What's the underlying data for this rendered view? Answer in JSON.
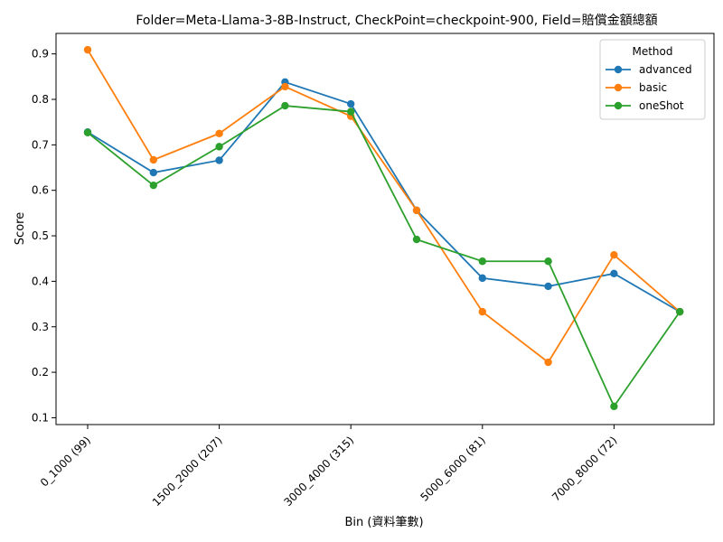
{
  "chart_data": {
    "type": "line",
    "title": "Folder=Meta-Llama-3-8B-Instruct, CheckPoint=checkpoint-900, Field=賠償金額總額",
    "xlabel": "Bin (資料筆數)",
    "ylabel": "Score",
    "ylim": [
      0.085,
      0.945
    ],
    "yticks": [
      0.1,
      0.2,
      0.3,
      0.4,
      0.5,
      0.6,
      0.7,
      0.8,
      0.9
    ],
    "x_tick_labels": [
      "0_1000 (99)",
      "1500_2000 (207)",
      "3000_4000 (315)",
      "5000_6000 (81)",
      "7000_8000 (72)"
    ],
    "x_tick_positions": [
      0,
      2,
      4,
      6,
      8
    ],
    "x_count": 10,
    "grid": false,
    "legend": {
      "title": "Method",
      "placement": "top-right"
    },
    "series": [
      {
        "name": "advanced",
        "color": "#1f77b4",
        "values": [
          0.728,
          0.639,
          0.666,
          0.838,
          0.79,
          0.556,
          0.407,
          0.389,
          0.417,
          0.333
        ]
      },
      {
        "name": "basic",
        "color": "#ff7f0e",
        "values": [
          0.909,
          0.667,
          0.725,
          0.828,
          0.763,
          0.556,
          0.333,
          0.222,
          0.458,
          0.333
        ]
      },
      {
        "name": "oneShot",
        "color": "#2ca02c",
        "values": [
          0.727,
          0.611,
          0.696,
          0.786,
          0.773,
          0.492,
          0.444,
          0.444,
          0.125,
          0.333
        ]
      }
    ]
  }
}
